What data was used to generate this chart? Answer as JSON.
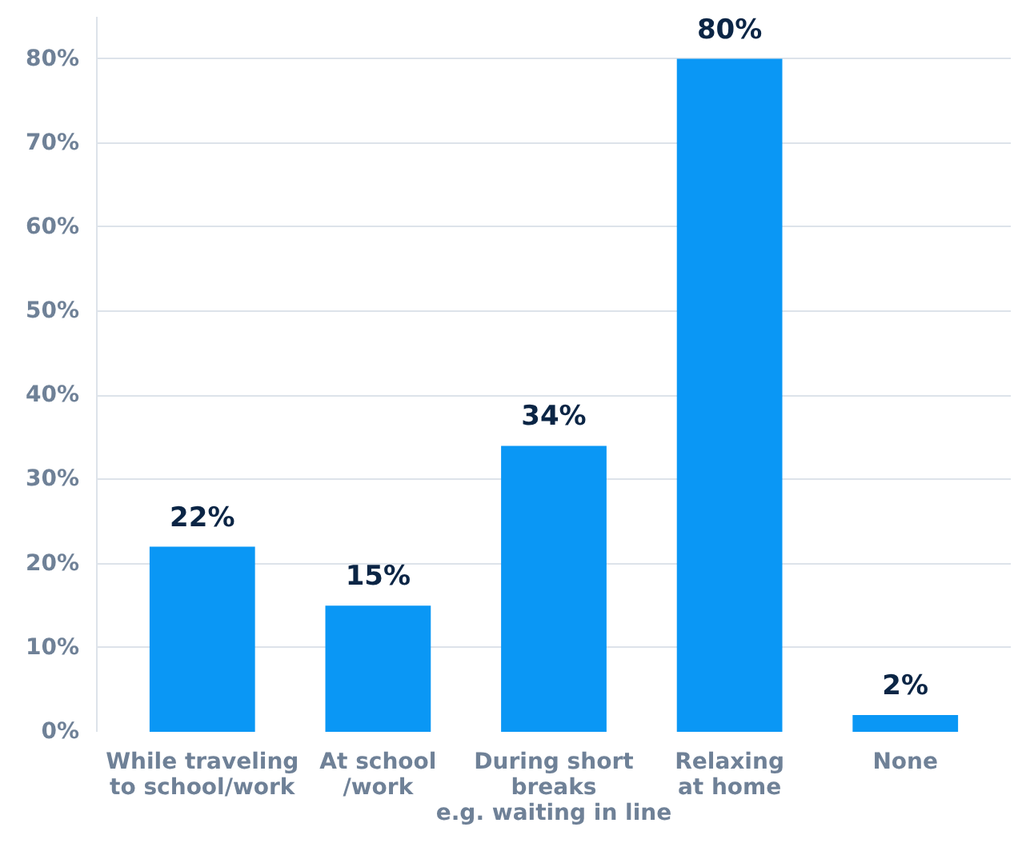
{
  "chart_data": {
    "type": "bar",
    "categories": [
      "While traveling\nto school/work",
      "At school\n/work",
      "During short\nbreaks\ne.g. waiting in line",
      "Relaxing\nat home",
      "None"
    ],
    "values": [
      22,
      15,
      34,
      80,
      2
    ],
    "value_labels": [
      "22%",
      "15%",
      "34%",
      "80%",
      "2%"
    ],
    "color": "#0a97f5",
    "ylim": [
      0,
      85
    ],
    "yticks": [
      {
        "value": 0,
        "label": "0%"
      },
      {
        "value": 10,
        "label": "10%"
      },
      {
        "value": 20,
        "label": "20%"
      },
      {
        "value": 30,
        "label": "30%"
      },
      {
        "value": 40,
        "label": "40%"
      },
      {
        "value": 50,
        "label": "50%"
      },
      {
        "value": 60,
        "label": "60%"
      },
      {
        "value": 70,
        "label": "70%"
      },
      {
        "value": 80,
        "label": "80%"
      }
    ],
    "grid": "y"
  }
}
